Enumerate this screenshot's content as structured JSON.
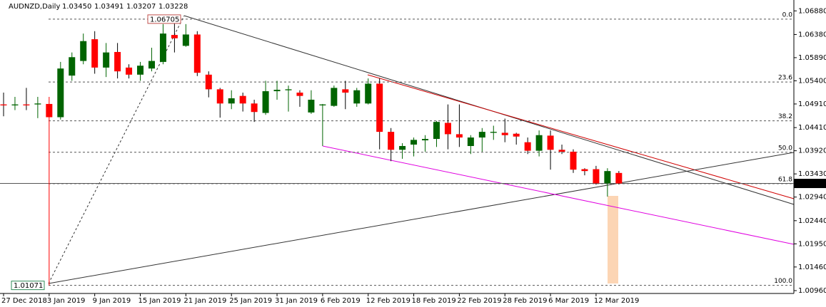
{
  "chart_data": {
    "type": "candlestick",
    "title": "AUDNZD,Daily",
    "header_values": [
      "1.03450",
      "1.03491",
      "1.03207",
      "1.03228"
    ],
    "categories": [
      "27 Dec 2018",
      null,
      null,
      null,
      "3 Jan 2019",
      null,
      null,
      null,
      "9 Jan 2019",
      null,
      null,
      null,
      "15 Jan 2019",
      null,
      null,
      null,
      "21 Jan 2019",
      null,
      null,
      null,
      "25 Jan 2019",
      null,
      null,
      null,
      "31 Jan 2019",
      null,
      null,
      null,
      "6 Feb 2019",
      null,
      null,
      null,
      "12 Feb 2019",
      null,
      null,
      null,
      "18 Feb 2019",
      null,
      null,
      null,
      "22 Feb 2019",
      null,
      null,
      null,
      "28 Feb 2019",
      null,
      null,
      null,
      "6 Mar 2019",
      null,
      null,
      null,
      "12 Mar 2019",
      null,
      null
    ],
    "open": [
      1.049,
      1.0488,
      1.049,
      1.049,
      1.0491,
      1.0463,
      1.0551,
      1.0582,
      1.0628,
      1.0568,
      1.0601,
      1.0568,
      1.0553,
      1.0566,
      1.058,
      1.0637,
      1.0614,
      1.0638,
      1.0553,
      1.0522,
      1.0492,
      1.0508,
      1.0492,
      1.0472,
      1.0518,
      1.052,
      1.0515,
      1.0473,
      1.0488,
      1.0487,
      1.0522,
      1.0492,
      1.0492,
      1.0534,
      1.0432,
      1.0394,
      1.0405,
      1.0414,
      1.0417,
      1.0451,
      1.0427,
      1.0402,
      1.042,
      1.043,
      1.043,
      1.0428,
      1.041,
      1.0392,
      1.0424,
      1.0394,
      1.039,
      1.0353,
      1.0353,
      1.0323,
      1.0345
    ],
    "high": [
      1.0515,
      1.0506,
      1.0525,
      1.0506,
      1.0506,
      1.058,
      1.06,
      1.064,
      1.0645,
      1.062,
      1.062,
      1.0575,
      1.058,
      1.061,
      1.066,
      1.06705,
      1.066,
      1.0645,
      1.056,
      1.0525,
      1.052,
      1.0515,
      1.05,
      1.054,
      1.054,
      1.053,
      1.052,
      1.052,
      1.0491,
      1.053,
      1.054,
      1.0525,
      1.0545,
      1.0545,
      1.044,
      1.0408,
      1.042,
      1.0425,
      1.0455,
      1.049,
      1.049,
      1.0425,
      1.044,
      1.0445,
      1.046,
      1.043,
      1.042,
      1.0435,
      1.0435,
      1.0405,
      1.0395,
      1.0355,
      1.036,
      1.0355,
      1.03491
    ],
    "low": [
      1.0465,
      1.0478,
      1.0478,
      1.0461,
      1.01071,
      1.0458,
      1.054,
      1.0575,
      1.0555,
      1.0548,
      1.0545,
      1.0545,
      1.054,
      1.056,
      1.0575,
      1.06,
      1.0612,
      1.055,
      1.0505,
      1.0462,
      1.048,
      1.0475,
      1.0453,
      1.0468,
      1.05,
      1.0475,
      1.0485,
      1.047,
      1.0402,
      1.0485,
      1.048,
      1.0485,
      1.049,
      1.0395,
      1.037,
      1.0375,
      1.038,
      1.039,
      1.04,
      1.0395,
      1.04,
      1.0385,
      1.039,
      1.0415,
      1.041,
      1.0405,
      1.0385,
      1.038,
      1.0352,
      1.0385,
      1.0345,
      1.034,
      1.032,
      1.0295,
      1.03207
    ],
    "close": [
      1.0488,
      1.049,
      1.0488,
      1.0492,
      1.0463,
      1.0566,
      1.059,
      1.0624,
      1.0568,
      1.06,
      1.056,
      1.0553,
      1.0572,
      1.0582,
      1.064,
      1.063,
      1.0638,
      1.0557,
      1.0522,
      1.0492,
      1.0503,
      1.0492,
      1.0474,
      1.0518,
      1.0521,
      1.0522,
      1.0508,
      1.05,
      1.049,
      1.0525,
      1.0515,
      1.052,
      1.0534,
      1.0432,
      1.0394,
      1.0402,
      1.0415,
      1.0417,
      1.0453,
      1.0427,
      1.042,
      1.042,
      1.0432,
      1.0432,
      1.0425,
      1.0422,
      1.0392,
      1.0425,
      1.0394,
      1.039,
      1.0352,
      1.0349,
      1.0323,
      1.0349,
      1.03228
    ],
    "up_color": "#006400",
    "down_color": "#ff0000",
    "ylim": [
      1.0096,
      1.0711
    ],
    "yticks": [
      {
        "value": 1.0688,
        "label": "1.06880"
      },
      {
        "value": 1.0638,
        "label": "1.06380"
      },
      {
        "value": 1.0589,
        "label": "1.05890"
      },
      {
        "value": 1.054,
        "label": "1.05400"
      },
      {
        "value": 1.0491,
        "label": "1.04910"
      },
      {
        "value": 1.0441,
        "label": "1.04410"
      },
      {
        "value": 1.0392,
        "label": "1.03920"
      },
      {
        "value": 1.0343,
        "label": "1.03430"
      },
      {
        "value": 1.0294,
        "label": "1.02940"
      },
      {
        "value": 1.0244,
        "label": "1.02440"
      },
      {
        "value": 1.0195,
        "label": "1.01950"
      },
      {
        "value": 1.0146,
        "label": "1.01460"
      },
      {
        "value": 1.0096,
        "label": "1.00960"
      }
    ],
    "fibo_levels": [
      {
        "value": 1.06705,
        "label": "0.0"
      },
      {
        "value": 1.05375,
        "label": "23.6"
      },
      {
        "value": 1.04553,
        "label": "38.2"
      },
      {
        "value": 1.03888,
        "label": "50.0"
      },
      {
        "value": 1.03223,
        "label": "61.8"
      },
      {
        "value": 1.01071,
        "label": "100.0"
      }
    ],
    "high_tag": {
      "value": 1.06705,
      "label": "1.06705"
    },
    "low_tag": {
      "value": 1.01071,
      "label": "1.01071"
    },
    "current_price": {
      "value": 1.03228,
      "label": "1.03228"
    }
  }
}
